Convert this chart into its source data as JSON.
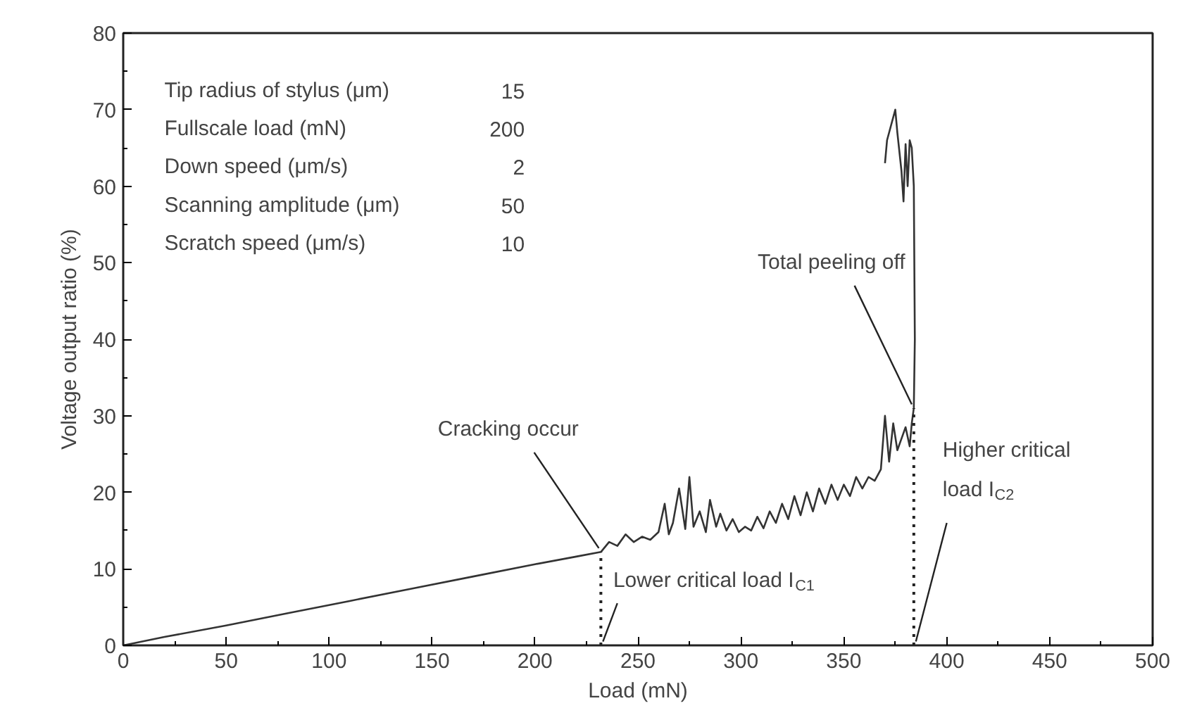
{
  "chart_data": {
    "type": "line",
    "xlabel": "Load (mN)",
    "ylabel": "Voltage output ratio (%)",
    "xlim": [
      0,
      500
    ],
    "ylim": [
      0,
      80
    ],
    "xticks": [
      0,
      50,
      100,
      150,
      200,
      250,
      300,
      350,
      400,
      450,
      500
    ],
    "yticks": [
      0,
      10,
      20,
      30,
      40,
      50,
      60,
      70,
      80
    ],
    "grid": false,
    "marker": "none",
    "line_style": "solid",
    "series": [
      {
        "color": "#333333",
        "x": [
          0,
          20,
          50,
          80,
          110,
          140,
          170,
          200,
          220,
          232,
          236,
          240,
          244,
          248,
          252,
          256,
          260,
          263,
          265,
          267,
          270,
          273,
          275,
          277,
          280,
          283,
          285,
          288,
          290,
          293,
          296,
          299,
          302,
          305,
          308,
          311,
          314,
          317,
          320,
          323,
          326,
          329,
          332,
          335,
          338,
          341,
          344,
          347,
          350,
          353,
          356,
          359,
          362,
          365,
          368,
          370,
          372,
          374,
          376,
          378,
          380,
          382,
          383,
          384,
          384.5,
          384,
          383,
          382,
          381,
          380,
          379,
          378,
          376,
          375,
          373,
          371,
          370
        ],
        "values": [
          0,
          1.1,
          2.6,
          4.2,
          5.8,
          7.4,
          9.0,
          10.6,
          11.6,
          12.2,
          13.5,
          13.0,
          14.5,
          13.5,
          14.2,
          13.8,
          14.8,
          18.5,
          14.5,
          16.0,
          20.5,
          15.2,
          22.0,
          15.5,
          17.5,
          14.8,
          19.0,
          15.5,
          17.2,
          15.0,
          16.5,
          14.8,
          15.5,
          15.0,
          16.8,
          15.3,
          17.5,
          16.0,
          18.5,
          16.5,
          19.5,
          17.0,
          20.0,
          17.5,
          20.5,
          18.5,
          21.0,
          19.0,
          21.0,
          19.5,
          22.0,
          20.5,
          22.0,
          21.5,
          23.0,
          30.0,
          24.0,
          29.0,
          25.5,
          27.0,
          28.5,
          26.0,
          29.0,
          31.0,
          40.0,
          60.0,
          65.0,
          66.0,
          60.0,
          65.5,
          58.0,
          62.0,
          67.0,
          70.0,
          68.0,
          66.0,
          63.0
        ]
      }
    ],
    "ref_lines": [
      {
        "axis": "x",
        "value": 232,
        "label": "Lower critical load I$_{C1}$",
        "line_style": "dotted"
      },
      {
        "axis": "x",
        "value": 384,
        "label": "Higher critical load I$_{C2}$",
        "line_style": "dotted"
      }
    ],
    "annotations": [
      "Tip radius of stylus (μm)",
      "15",
      "Fullscale load (mN)",
      "200",
      "Down speed (μm/s)",
      "2",
      "Scanning amplitude (μm)",
      "50",
      "Scratch speed (μm/s)",
      "10",
      {
        "text": "Cracking occur",
        "x": 232,
        "y": 12.2
      },
      {
        "text": "Total peeling off",
        "x": 384,
        "y": 31
      }
    ]
  }
}
